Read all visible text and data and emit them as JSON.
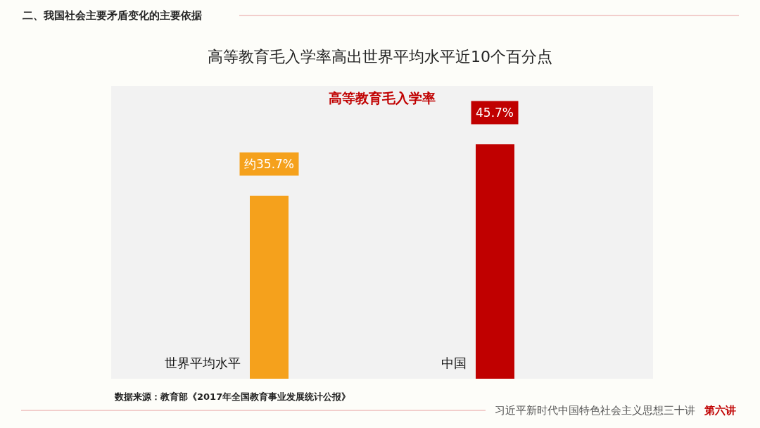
{
  "chart_data": {
    "type": "bar",
    "title": "高等教育毛入学率高出世界平均水平近10个百分点",
    "subtitle": "高等教育毛入学率",
    "categories": [
      "世界平均水平",
      "中国"
    ],
    "values": [
      35.7,
      45.7
    ],
    "value_labels": [
      "约35.7%",
      "45.7%"
    ],
    "colors": [
      "#f5a11c",
      "#c00000"
    ],
    "annotations": [
      "二、我国社会主要矛盾变化的主要依据",
      "数据来源：教育部《2017年全国教育事业发展统计公报》",
      "习近平新时代中国特色社会主义思想三十讲",
      "第六讲"
    ]
  }
}
